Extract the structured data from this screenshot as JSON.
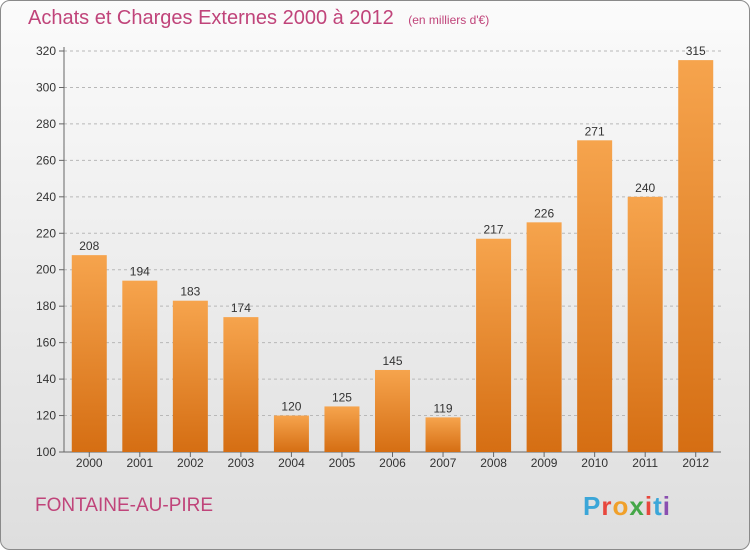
{
  "header": {
    "title": "Achats et Charges Externes 2000 à 2012",
    "unit": "(en milliers d'€)"
  },
  "footer": {
    "place": "FONTAINE-AU-PIRE",
    "logo_text": "Proxiti"
  },
  "colors": {
    "title": "#c0447a",
    "bar_top": "#f6a44d",
    "bar_bottom": "#d56e13",
    "grid": "#b8b8b8"
  },
  "logo_colors": [
    "#3ba6d8",
    "#e8473d",
    "#f0a02a",
    "#45a748",
    "#e8473d",
    "#3ba6d8",
    "#8a4fb0"
  ],
  "chart_data": {
    "type": "bar",
    "categories": [
      "2000",
      "2001",
      "2002",
      "2003",
      "2004",
      "2005",
      "2006",
      "2007",
      "2008",
      "2009",
      "2010",
      "2011",
      "2012"
    ],
    "values": [
      208,
      194,
      183,
      174,
      120,
      125,
      145,
      119,
      217,
      226,
      271,
      240,
      315
    ],
    "ylim": [
      100,
      320
    ],
    "yticks": [
      100,
      120,
      140,
      160,
      180,
      200,
      220,
      240,
      260,
      280,
      300,
      320
    ],
    "grid": true,
    "data_labels": true
  }
}
